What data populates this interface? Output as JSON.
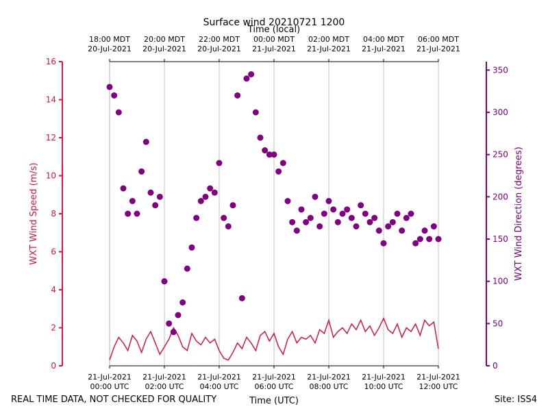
{
  "chart_data": {
    "type": "combo",
    "title": "Surface wind 20210721 1200",
    "x2_label": "Time (local)",
    "x_label": "Time (UTC)",
    "y_label": "WXT Wind Speed (m/s)",
    "y2_label": "WXT Wind Direction (degrees)",
    "note_left": "REAL TIME DATA, NOT CHECKED FOR QUALITY",
    "note_right": "Site: ISS4",
    "grid": true,
    "xlim": [
      "2021-07-21 00:00",
      "2021-07-21 12:00"
    ],
    "xticks": [
      {
        "value": "2021-07-21 00:00",
        "label": "21-Jul-2021\n00:00 UTC"
      },
      {
        "value": "2021-07-21 02:00",
        "label": "21-Jul-2021\n02:00 UTC"
      },
      {
        "value": "2021-07-21 04:00",
        "label": "21-Jul-2021\n04:00 UTC"
      },
      {
        "value": "2021-07-21 06:00",
        "label": "21-Jul-2021\n06:00 UTC"
      },
      {
        "value": "2021-07-21 08:00",
        "label": "21-Jul-2021\n08:00 UTC"
      },
      {
        "value": "2021-07-21 10:00",
        "label": "21-Jul-2021\n10:00 UTC"
      },
      {
        "value": "2021-07-21 12:00",
        "label": "21-Jul-2021\n12:00 UTC"
      }
    ],
    "x2ticks": [
      {
        "value": "2021-07-21 00:00",
        "label": "18:00 MDT\n20-Jul-2021"
      },
      {
        "value": "2021-07-21 02:00",
        "label": "20:00 MDT\n20-Jul-2021"
      },
      {
        "value": "2021-07-21 04:00",
        "label": "22:00 MDT\n20-Jul-2021"
      },
      {
        "value": "2021-07-21 06:00",
        "label": "00:00 MDT\n21-Jul-2021"
      },
      {
        "value": "2021-07-21 08:00",
        "label": "02:00 MDT\n21-Jul-2021"
      },
      {
        "value": "2021-07-21 10:00",
        "label": "04:00 MDT\n21-Jul-2021"
      },
      {
        "value": "2021-07-21 12:00",
        "label": "06:00 MDT\n21-Jul-2021"
      }
    ],
    "ylim": [
      0,
      16
    ],
    "yticks": [
      0,
      2,
      4,
      6,
      8,
      10,
      12,
      14,
      16
    ],
    "y_color": "#dc143c",
    "y2lim": [
      0,
      360
    ],
    "y2ticks": [
      0,
      50,
      100,
      150,
      200,
      250,
      300,
      350
    ],
    "y2_color": "#800080",
    "x": [
      "2021-07-21 00:00",
      "2021-07-21 00:10",
      "2021-07-21 00:20",
      "2021-07-21 00:30",
      "2021-07-21 00:40",
      "2021-07-21 00:50",
      "2021-07-21 01:00",
      "2021-07-21 01:10",
      "2021-07-21 01:20",
      "2021-07-21 01:30",
      "2021-07-21 01:40",
      "2021-07-21 01:50",
      "2021-07-21 02:00",
      "2021-07-21 02:10",
      "2021-07-21 02:20",
      "2021-07-21 02:30",
      "2021-07-21 02:40",
      "2021-07-21 02:50",
      "2021-07-21 03:00",
      "2021-07-21 03:10",
      "2021-07-21 03:20",
      "2021-07-21 03:30",
      "2021-07-21 03:40",
      "2021-07-21 03:50",
      "2021-07-21 04:00",
      "2021-07-21 04:10",
      "2021-07-21 04:20",
      "2021-07-21 04:30",
      "2021-07-21 04:40",
      "2021-07-21 04:50",
      "2021-07-21 05:00",
      "2021-07-21 05:10",
      "2021-07-21 05:20",
      "2021-07-21 05:30",
      "2021-07-21 05:40",
      "2021-07-21 05:50",
      "2021-07-21 06:00",
      "2021-07-21 06:10",
      "2021-07-21 06:20",
      "2021-07-21 06:30",
      "2021-07-21 06:40",
      "2021-07-21 06:50",
      "2021-07-21 07:00",
      "2021-07-21 07:10",
      "2021-07-21 07:20",
      "2021-07-21 07:30",
      "2021-07-21 07:40",
      "2021-07-21 07:50",
      "2021-07-21 08:00",
      "2021-07-21 08:10",
      "2021-07-21 08:20",
      "2021-07-21 08:30",
      "2021-07-21 08:40",
      "2021-07-21 08:50",
      "2021-07-21 09:00",
      "2021-07-21 09:10",
      "2021-07-21 09:20",
      "2021-07-21 09:30",
      "2021-07-21 09:40",
      "2021-07-21 09:50",
      "2021-07-21 10:00",
      "2021-07-21 10:10",
      "2021-07-21 10:20",
      "2021-07-21 10:30",
      "2021-07-21 10:40",
      "2021-07-21 10:50",
      "2021-07-21 11:00",
      "2021-07-21 11:10",
      "2021-07-21 11:20",
      "2021-07-21 11:30",
      "2021-07-21 11:40",
      "2021-07-21 11:50",
      "2021-07-21 12:00"
    ],
    "series": [
      {
        "name": "WXT Wind Speed",
        "type": "line",
        "axis": "y",
        "color": "#dc143c",
        "values": [
          0.3,
          1.0,
          1.5,
          1.2,
          0.8,
          1.6,
          1.3,
          0.7,
          1.4,
          1.8,
          1.2,
          0.6,
          1.0,
          1.4,
          2.0,
          1.6,
          1.0,
          0.8,
          1.7,
          1.3,
          1.1,
          1.5,
          1.2,
          1.4,
          0.8,
          0.4,
          0.3,
          0.7,
          1.2,
          0.9,
          1.5,
          1.2,
          0.8,
          1.6,
          1.8,
          1.3,
          1.7,
          1.0,
          0.6,
          1.4,
          1.8,
          1.2,
          1.5,
          1.4,
          1.6,
          1.2,
          1.9,
          1.7,
          2.4,
          1.5,
          1.8,
          2.0,
          1.7,
          2.2,
          1.9,
          2.4,
          1.8,
          2.1,
          1.6,
          2.0,
          2.5,
          1.9,
          1.7,
          2.2,
          1.5,
          2.0,
          1.8,
          2.2,
          1.6,
          2.4,
          2.1,
          2.3,
          0.9
        ]
      },
      {
        "name": "WXT Wind Direction",
        "type": "scatter",
        "axis": "y2",
        "color": "#800080",
        "values": [
          330,
          320,
          300,
          210,
          180,
          195,
          180,
          230,
          265,
          205,
          190,
          200,
          100,
          50,
          40,
          60,
          75,
          115,
          140,
          175,
          195,
          200,
          210,
          205,
          240,
          175,
          165,
          190,
          320,
          80,
          340,
          345,
          300,
          270,
          255,
          250,
          250,
          230,
          240,
          195,
          170,
          160,
          185,
          170,
          175,
          200,
          165,
          180,
          195,
          185,
          170,
          180,
          185,
          175,
          165,
          190,
          180,
          170,
          175,
          160,
          145,
          165,
          170,
          180,
          160,
          175,
          180,
          145,
          150,
          160,
          150,
          165,
          150
        ]
      }
    ]
  }
}
